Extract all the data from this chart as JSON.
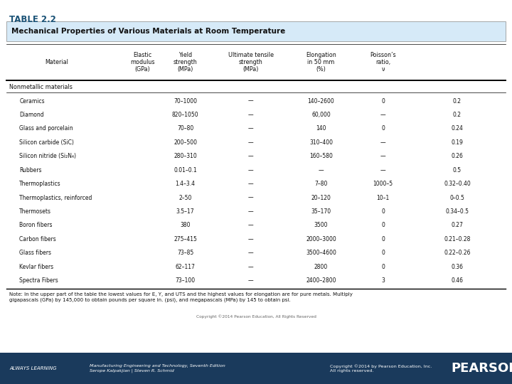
{
  "table_label": "TABLE 2.2",
  "table_title": "Mechanical Properties of Various Materials at Room Temperature",
  "col_headers": [
    "Material",
    "Elastic\nmodulus\n(GPa)",
    "Yield\nstrength\n(MPa)",
    "Ultimate tensile\nstrength\n(MPa)",
    "Elongation\nin 50 mm\n(%)",
    "Poisson’s\nratio,\nν"
  ],
  "section_header": "Nonmetallic materials",
  "rows": [
    [
      "Ceramics",
      "70–1000",
      "—",
      "140–2600",
      "0",
      "0.2"
    ],
    [
      "Diamond",
      "820–1050",
      "—",
      "60,000",
      "—",
      "0.2"
    ],
    [
      "Glass and porcelain",
      "70–80",
      "—",
      "140",
      "0",
      "0.24"
    ],
    [
      "Silicon carbide (SiC)",
      "200–500",
      "—",
      "310–400",
      "—",
      "0.19"
    ],
    [
      "Silicon nitride (Si₂N₄)",
      "280–310",
      "—",
      "160–580",
      "—",
      "0.26"
    ],
    [
      "Rubbers",
      "0.01–0.1",
      "—",
      "—",
      "—",
      "0.5"
    ],
    [
      "Thermoplastics",
      "1.4–3.4",
      "—",
      "7–80",
      "1000–5",
      "0.32–0.40"
    ],
    [
      "Thermoplastics, reinforced",
      "2–50",
      "—",
      "20–120",
      "10–1",
      "0–0.5"
    ],
    [
      "Thermosets",
      "3.5–17",
      "—",
      "35–170",
      "0",
      "0.34–0.5"
    ],
    [
      "Boron fibers",
      "380",
      "—",
      "3500",
      "0",
      "0.27"
    ],
    [
      "Carbon fibers",
      "275–415",
      "—",
      "2000–3000",
      "0",
      "0.21–0.28"
    ],
    [
      "Glass fibers",
      "73–85",
      "—",
      "3500–4600",
      "0",
      "0.22–0.26"
    ],
    [
      "Kevlar fibers",
      "62–117",
      "—",
      "2800",
      "0",
      "0.36"
    ],
    [
      "Spectra Fibers",
      "73–100",
      "—",
      "2400–2800",
      "3",
      "0.46"
    ]
  ],
  "note": "Note: In the upper part of the table the lowest values for E, Y, and UTS and the highest values for elongation are for pure metals. Multiply\ngigapascals (GPa) by 145,000 to obtain pounds per square in. (psi), and megapascals (MPa) by 145 to obtain psi.",
  "copyright_text": "Copyright ©2014 Pearson Education, All Rights Reserved",
  "footer_left": "ALWAYS LEARNING",
  "footer_book": "Manufacturing Engineering and Technology, Seventh Edition\nSerope Kalpakjian | Steven R. Schmid",
  "footer_copy": "Copyright ©2014 by Pearson Education, Inc.\nAll rights reserved.",
  "footer_brand": "PEARSON",
  "title_color": "#1a5276",
  "header_bg": "#d6eaf8",
  "footer_bg": "#1a3a5c",
  "footer_text_color": "#ffffff",
  "bg_color": "#ffffff"
}
